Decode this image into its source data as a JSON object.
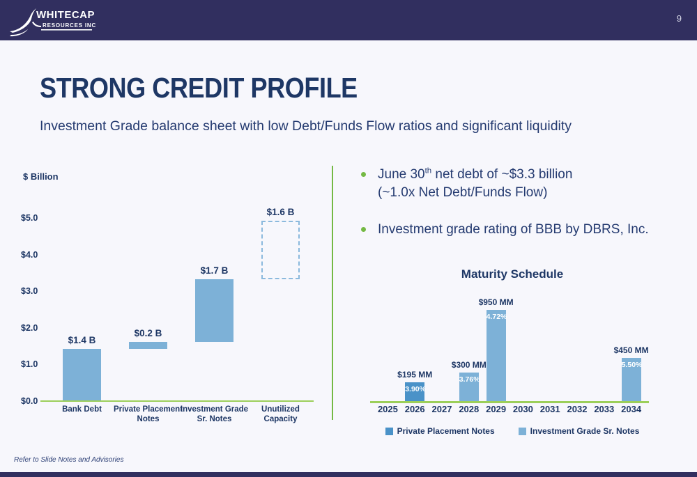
{
  "header": {
    "page_number": "9",
    "logo": {
      "name": "WHITECAP",
      "sub": "RESOURCES INC"
    }
  },
  "slide": {
    "title": "STRONG CREDIT PROFILE",
    "subtitle": "Investment Grade balance sheet with low Debt/Funds Flow ratios and significant liquidity"
  },
  "bullets": [
    {
      "pre": "June 30",
      "sup": "th",
      "post": " net debt of ~$3.3 billion",
      "line2": "(~1.0x Net Debt/Funds Flow)"
    },
    {
      "text": "Investment grade rating of BBB by DBRS, Inc."
    }
  ],
  "footer": {
    "note": "Refer to Slide Notes and Advisories"
  },
  "colors": {
    "navy_band": "#312f5f",
    "title_text": "#1e3765",
    "body_text": "#243a70",
    "bar_light_blue": "#7db1d7",
    "bar_dark_blue": "#4a92c8",
    "axis_green": "#9ccf5a",
    "accent_green": "#74b944",
    "background": "#f7f7fc"
  },
  "chart_data": [
    {
      "type": "bar",
      "variant": "waterfall",
      "ylabel": "$ Billion",
      "ylim": [
        0,
        5
      ],
      "yticks": [
        "$0.0",
        "$1.0",
        "$2.0",
        "$3.0",
        "$4.0",
        "$5.0"
      ],
      "categories": [
        "Bank Debt",
        "Private Placement Notes",
        "Investment Grade Sr. Notes",
        "Unutilized Capacity"
      ],
      "bars": [
        {
          "label": "Bank Debt",
          "start": 0.0,
          "value": 1.4,
          "value_label": "$1.4 B",
          "style": "solid"
        },
        {
          "label": "Private Placement Notes",
          "start": 1.4,
          "value": 0.2,
          "value_label": "$0.2 B",
          "style": "solid"
        },
        {
          "label": "Investment Grade Sr. Notes",
          "start": 1.6,
          "value": 1.7,
          "value_label": "$1.7 B",
          "style": "solid"
        },
        {
          "label": "Unutilized Capacity",
          "start": 3.3,
          "value": 1.6,
          "value_label": "$1.6 B",
          "style": "dashed"
        }
      ]
    },
    {
      "type": "bar",
      "title": "Maturity Schedule",
      "categories": [
        "2025",
        "2026",
        "2027",
        "2028",
        "2029",
        "2030",
        "2031",
        "2032",
        "2033",
        "2034"
      ],
      "unit": "MM",
      "series": [
        {
          "name": "Private Placement Notes",
          "color_key": "bar_dark_blue",
          "points": [
            {
              "year": "2026",
              "value": 195,
              "value_label": "$195 MM",
              "coupon": "3.90%"
            }
          ]
        },
        {
          "name": "Investment Grade Sr. Notes",
          "color_key": "bar_light_blue",
          "points": [
            {
              "year": "2028",
              "value": 300,
              "value_label": "$300 MM",
              "coupon": "3.76%"
            },
            {
              "year": "2029",
              "value": 950,
              "value_label": "$950 MM",
              "coupon": "4.72%"
            },
            {
              "year": "2034",
              "value": 450,
              "value_label": "$450 MM",
              "coupon": "5.50%"
            }
          ]
        }
      ],
      "legend": [
        "Private Placement Notes",
        "Investment Grade Sr. Notes"
      ]
    }
  ]
}
